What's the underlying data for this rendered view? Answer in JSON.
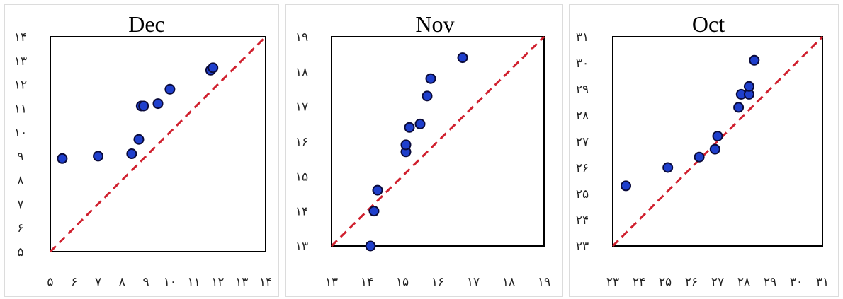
{
  "chart_data": [
    {
      "type": "scatter",
      "title": "Dec",
      "xlim": [
        5,
        14
      ],
      "ylim": [
        5,
        14
      ],
      "xticks": [
        "۵",
        "۶",
        "۷",
        "۸",
        "۹",
        "۱۰",
        "۱۱",
        "۱۲",
        "۱۳",
        "۱۴"
      ],
      "yticks": [
        "۵",
        "۶",
        "۷",
        "۸",
        "۹",
        "۱۰",
        "۱۱",
        "۱۲",
        "۱۳",
        "۱۴"
      ],
      "identity_line": true,
      "points": [
        {
          "x": 5.5,
          "y": 8.9
        },
        {
          "x": 7.0,
          "y": 9.0
        },
        {
          "x": 8.4,
          "y": 9.1
        },
        {
          "x": 8.7,
          "y": 9.7
        },
        {
          "x": 8.8,
          "y": 11.1
        },
        {
          "x": 8.9,
          "y": 11.1
        },
        {
          "x": 9.5,
          "y": 11.2
        },
        {
          "x": 10.0,
          "y": 11.8
        },
        {
          "x": 11.7,
          "y": 12.6
        },
        {
          "x": 11.8,
          "y": 12.7
        }
      ]
    },
    {
      "type": "scatter",
      "title": "Nov",
      "xlim": [
        13,
        19
      ],
      "ylim": [
        13,
        19
      ],
      "xticks": [
        "۱۳",
        "۱۴",
        "۱۵",
        "۱۶",
        "۱۷",
        "۱۸",
        "۱۹"
      ],
      "yticks": [
        "۱۳",
        "۱۴",
        "۱۵",
        "۱۶",
        "۱۷",
        "۱۸",
        "۱۹"
      ],
      "identity_line": true,
      "points": [
        {
          "x": 14.1,
          "y": 13.0
        },
        {
          "x": 14.2,
          "y": 14.0
        },
        {
          "x": 14.3,
          "y": 14.6
        },
        {
          "x": 15.1,
          "y": 15.7
        },
        {
          "x": 15.1,
          "y": 15.9
        },
        {
          "x": 15.2,
          "y": 16.4
        },
        {
          "x": 15.5,
          "y": 16.5
        },
        {
          "x": 15.7,
          "y": 17.3
        },
        {
          "x": 15.8,
          "y": 17.8
        },
        {
          "x": 16.7,
          "y": 18.4
        }
      ]
    },
    {
      "type": "scatter",
      "title": "Oct",
      "xlim": [
        23,
        31
      ],
      "ylim": [
        23,
        31
      ],
      "xticks": [
        "۲۳",
        "۲۴",
        "۲۵",
        "۲۶",
        "۲۷",
        "۲۸",
        "۲۹",
        "۳۰",
        "۳۱"
      ],
      "yticks": [
        "۲۳",
        "۲۴",
        "۲۵",
        "۲۶",
        "۲۷",
        "۲۸",
        "۲۹",
        "۳۰",
        "۳۱"
      ],
      "identity_line": true,
      "points": [
        {
          "x": 23.5,
          "y": 25.3
        },
        {
          "x": 25.1,
          "y": 26.0
        },
        {
          "x": 26.3,
          "y": 26.4
        },
        {
          "x": 26.9,
          "y": 26.7
        },
        {
          "x": 27.0,
          "y": 27.2
        },
        {
          "x": 27.8,
          "y": 28.3
        },
        {
          "x": 27.9,
          "y": 28.8
        },
        {
          "x": 28.2,
          "y": 28.8
        },
        {
          "x": 28.2,
          "y": 29.1
        },
        {
          "x": 28.4,
          "y": 30.1
        }
      ]
    }
  ],
  "colors": {
    "point_fill": "#1f3fcc",
    "point_stroke": "#0a0a3a",
    "identity_line": "#d0202e",
    "frame": "#000000"
  }
}
